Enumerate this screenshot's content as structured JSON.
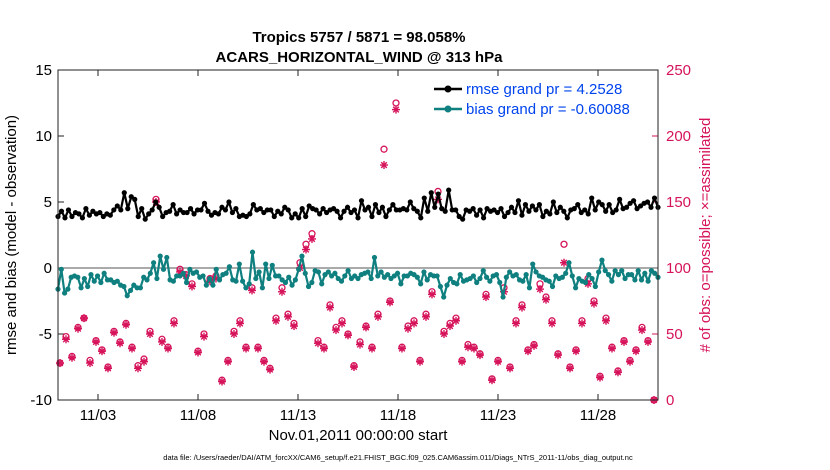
{
  "chart_data": {
    "type": "line",
    "title": "Tropics 5757 / 5871 = 98.058%",
    "subtitle": "ACARS_HORIZONTAL_WIND @ 313 hPa",
    "xlabel": "Nov.01,2011 00:00:00 start",
    "ylabel": "rmse and bias (model - observation)",
    "y2label": "# of obs: o=possible; ×=assimilated",
    "footnote": "data file: /Users/raeder/DAI/ATM_forcXX/CAM6_setup/f.e21.FHIST_BGC.f09_025.CAM6assim.011/Diags_NTrS_2011-11/obs_diag_output.nc",
    "xlim": [
      1,
      31
    ],
    "ylim": [
      -10,
      15
    ],
    "y2lim": [
      0,
      250
    ],
    "xticks": [
      3,
      8,
      13,
      18,
      23,
      28
    ],
    "xtick_labels": [
      "11/03",
      "11/08",
      "11/13",
      "11/18",
      "11/23",
      "11/28"
    ],
    "yticks": [
      -10,
      -5,
      0,
      5,
      10,
      15
    ],
    "y2ticks": [
      0,
      50,
      100,
      150,
      200,
      250
    ],
    "colors": {
      "rmse": "#000000",
      "bias": "#0f807f",
      "obs": "#d6135a",
      "zero": "#aaaaaa",
      "legend_text": "#0044ee"
    },
    "series": [
      {
        "name": "rmse grand pr = 4.2528",
        "color": "#000000",
        "marker": "dot",
        "axis": "left",
        "values": [
          3.9,
          4.3,
          3.8,
          4.4,
          3.9,
          4.2,
          4.1,
          3.8,
          4.5,
          4.0,
          4.3,
          4.1,
          4.2,
          3.9,
          4.1,
          4.0,
          4.4,
          4.7,
          4.4,
          5.7,
          4.5,
          5.4,
          5.2,
          3.9,
          4.5,
          3.7,
          4.1,
          4.4,
          5.0,
          4.6,
          3.9,
          4.2,
          4.3,
          4.8,
          4.1,
          4.4,
          4.2,
          4.2,
          4.5,
          4.1,
          4.4,
          4.4,
          4.9,
          4.3,
          4.0,
          4.2,
          4.1,
          4.6,
          4.4,
          5.0,
          4.2,
          4.5,
          3.9,
          4.0,
          3.9,
          4.1,
          4.8,
          4.4,
          4.5,
          4.2,
          4.4,
          4.4,
          3.9,
          4.3,
          4.1,
          4.6,
          4.4,
          3.8,
          4.1,
          3.8,
          4.5,
          3.9,
          4.7,
          4.5,
          4.4,
          4.1,
          4.5,
          4.2,
          4.4,
          4.5,
          4.3,
          3.8,
          4.3,
          4.6,
          4.2,
          4.4,
          3.8,
          5.1,
          4.4,
          4.6,
          3.9,
          4.8,
          4.2,
          4.6,
          3.9,
          4.4,
          4.8,
          4.4,
          4.4,
          4.5,
          4.4,
          5.0,
          4.5,
          4.3,
          3.8,
          5.3,
          4.3,
          5.7,
          4.6,
          5.6,
          4.5,
          4.3,
          5.9,
          4.4,
          4.4,
          3.9,
          3.7,
          4.4,
          4.3,
          4.5,
          4.0,
          4.4,
          3.8,
          4.5,
          4.3,
          4.4,
          4.2,
          4.5,
          3.9,
          4.2,
          4.6,
          4.2,
          5.1,
          4.0,
          4.8,
          4.3,
          4.7,
          4.4,
          4.8,
          3.9,
          4.3,
          4.1,
          5.0,
          4.2,
          4.6,
          4.3,
          3.8,
          4.4,
          4.5,
          4.8,
          4.2,
          4.4,
          4.1,
          5.3,
          4.4,
          5.0,
          4.8,
          4.3,
          4.8,
          4.2,
          4.4,
          5.2,
          4.5,
          4.6,
          4.9,
          5.1,
          4.5,
          4.7,
          4.9,
          5.0,
          4.6,
          5.3,
          4.6
        ]
      },
      {
        "name": "bias grand pr = -0.60088",
        "color": "#0f807f",
        "marker": "dot",
        "axis": "left",
        "values": [
          -1.6,
          -0.1,
          -1.9,
          -1.6,
          -0.7,
          -0.6,
          -0.7,
          -1.5,
          -0.8,
          -1.4,
          -0.5,
          -1.0,
          -0.6,
          -1.1,
          -0.4,
          -0.9,
          -0.9,
          -1.1,
          -1.0,
          -1.3,
          -1.4,
          -2.1,
          -1.7,
          -1.3,
          -1.5,
          -1.5,
          -0.7,
          -0.9,
          -0.4,
          0.4,
          -0.8,
          0.9,
          -0.1,
          0.8,
          -0.9,
          -1.0,
          -0.6,
          -0.6,
          -0.4,
          -1.1,
          -0.1,
          -0.4,
          -0.3,
          -0.7,
          -0.6,
          -1.3,
          -0.8,
          -1.3,
          -0.1,
          -0.9,
          -0.5,
          -0.4,
          0.1,
          -0.9,
          -1.0,
          0.3,
          -1.0,
          -1.5,
          -1.2,
          1.2,
          -0.8,
          -0.3,
          -1.5,
          0.3,
          -0.8,
          0.2,
          -0.6,
          -0.6,
          -0.9,
          -1.1,
          -0.7,
          -1.3,
          -0.9,
          -0.1,
          0.9,
          -0.4,
          -1.4,
          -1.1,
          -0.2,
          -0.3,
          -1.2,
          -0.5,
          -0.3,
          -0.6,
          -0.4,
          -0.8,
          -1.0,
          -0.6,
          -0.2,
          -0.8,
          -0.6,
          -0.8,
          -0.5,
          -0.4,
          -0.3,
          -0.8,
          0.8,
          -0.6,
          -0.3,
          -0.7,
          -0.5,
          -0.8,
          -0.6,
          -0.4,
          -1.2,
          -0.6,
          -0.6,
          -0.4,
          -0.5,
          -0.7,
          -1.2,
          -0.3,
          -0.9,
          -0.5,
          -0.6,
          -0.6,
          -1.4,
          -2.2,
          -1.3,
          -0.8,
          -1.1,
          -1.2,
          -0.5,
          -1.0,
          -0.9,
          -0.8,
          -0.6,
          -1.1,
          -0.8,
          -0.2,
          -0.7,
          -1.0,
          -0.6,
          -0.5,
          -1.1,
          -2.2,
          -0.7,
          -0.3,
          -0.6,
          -0.5,
          -0.9,
          -1.0,
          -0.5,
          -1.5,
          0.3,
          -0.3,
          -0.6,
          -0.7,
          -0.9,
          -1.0,
          -1.4,
          -0.6,
          -0.8,
          -0.7,
          -0.4,
          0.4,
          -0.6,
          -1.5,
          -0.8,
          -1.0,
          -1.1,
          -0.5,
          -0.8,
          -1.4,
          -0.3,
          0.6,
          -0.2,
          -0.5,
          -1.0,
          -0.2,
          -0.5,
          -0.2,
          -0.8,
          -0.5,
          -0.5,
          -0.9,
          -0.2,
          -0.9,
          -0.4,
          -1.0,
          -0.2,
          -0.4,
          -0.7
        ]
      },
      {
        "name": "obs possible",
        "color": "#d6135a",
        "marker": "circle",
        "axis": "right",
        "times": [
          1.1,
          1.4,
          1.7,
          2.0,
          2.3,
          2.6,
          2.9,
          3.2,
          3.5,
          3.8,
          4.1,
          4.4,
          4.7,
          5.0,
          5.3,
          5.6,
          5.9,
          6.2,
          6.5,
          6.8,
          7.1,
          7.4,
          7.7,
          8.0,
          8.3,
          8.6,
          8.9,
          9.2,
          9.5,
          9.8,
          10.1,
          10.4,
          10.7,
          11.0,
          11.3,
          11.6,
          11.9,
          12.2,
          12.5,
          12.8,
          13.1,
          13.4,
          13.7,
          14.0,
          14.3,
          14.6,
          14.9,
          15.2,
          15.5,
          15.8,
          16.1,
          16.4,
          16.7,
          17.0,
          17.3,
          17.6,
          17.9,
          18.2,
          18.5,
          18.8,
          19.1,
          19.4,
          19.7,
          20.0,
          20.3,
          20.6,
          20.9,
          21.2,
          21.5,
          21.8,
          22.1,
          22.4,
          22.7,
          23.0,
          23.3,
          23.6,
          23.9,
          24.2,
          24.5,
          24.8,
          25.1,
          25.4,
          25.7,
          26.0,
          26.3,
          26.6,
          26.9,
          27.2,
          27.5,
          27.8,
          28.1,
          28.4,
          28.7,
          29.0,
          29.3,
          29.6,
          29.9,
          30.2,
          30.5,
          30.8
        ],
        "values": [
          28,
          48,
          33,
          55,
          62,
          30,
          45,
          38,
          25,
          52,
          44,
          58,
          40,
          26,
          31,
          52,
          152,
          46,
          40,
          60,
          99,
          95,
          88,
          37,
          50,
          92,
          94,
          15,
          30,
          52,
          60,
          40,
          85,
          40,
          30,
          24,
          62,
          85,
          65,
          58,
          104,
          118,
          126,
          45,
          40,
          72,
          55,
          60,
          50,
          26,
          44,
          56,
          40,
          65,
          190,
          75,
          225,
          40,
          56,
          60,
          30,
          65,
          82,
          158,
          52,
          58,
          62,
          30,
          42,
          40,
          35,
          80,
          16,
          30,
          85,
          25,
          60,
          72,
          38,
          42,
          88,
          78,
          60,
          35,
          118,
          25,
          38,
          60,
          92,
          75,
          18,
          62,
          40,
          22,
          45,
          30,
          38,
          55,
          45,
          0
        ]
      },
      {
        "name": "obs assimilated",
        "color": "#d6135a",
        "marker": "star",
        "axis": "right",
        "times": [
          1.1,
          1.4,
          1.7,
          2.0,
          2.3,
          2.6,
          2.9,
          3.2,
          3.5,
          3.8,
          4.1,
          4.4,
          4.7,
          5.0,
          5.3,
          5.6,
          5.9,
          6.2,
          6.5,
          6.8,
          7.1,
          7.4,
          7.7,
          8.0,
          8.3,
          8.6,
          8.9,
          9.2,
          9.5,
          9.8,
          10.1,
          10.4,
          10.7,
          11.0,
          11.3,
          11.6,
          11.9,
          12.2,
          12.5,
          12.8,
          13.1,
          13.4,
          13.7,
          14.0,
          14.3,
          14.6,
          14.9,
          15.2,
          15.5,
          15.8,
          16.1,
          16.4,
          16.7,
          17.0,
          17.3,
          17.6,
          17.9,
          18.2,
          18.5,
          18.8,
          19.1,
          19.4,
          19.7,
          20.0,
          20.3,
          20.6,
          20.9,
          21.2,
          21.5,
          21.8,
          22.1,
          22.4,
          22.7,
          23.0,
          23.3,
          23.6,
          23.9,
          24.2,
          24.5,
          24.8,
          25.1,
          25.4,
          25.7,
          26.0,
          26.3,
          26.6,
          26.9,
          27.2,
          27.5,
          27.8,
          28.1,
          28.4,
          28.7,
          29.0,
          29.3,
          29.6,
          29.9,
          30.2,
          30.5,
          30.8
        ],
        "values": [
          28,
          46,
          32,
          54,
          62,
          28,
          44,
          37,
          24,
          51,
          43,
          57,
          39,
          24,
          29,
          50,
          150,
          44,
          39,
          58,
          97,
          94,
          86,
          36,
          48,
          90,
          92,
          14,
          29,
          50,
          58,
          39,
          83,
          39,
          29,
          23,
          60,
          82,
          63,
          56,
          100,
          114,
          122,
          43,
          39,
          70,
          53,
          58,
          49,
          25,
          42,
          55,
          39,
          63,
          178,
          74,
          220,
          39,
          54,
          58,
          29,
          63,
          80,
          152,
          50,
          56,
          60,
          29,
          40,
          39,
          34,
          78,
          15,
          29,
          82,
          24,
          58,
          70,
          37,
          41,
          84,
          76,
          58,
          34,
          104,
          24,
          37,
          58,
          88,
          73,
          17,
          60,
          39,
          21,
          44,
          29,
          37,
          53,
          44,
          0
        ]
      }
    ]
  },
  "legend": {
    "rmse_label": "rmse grand pr = 4.2528",
    "bias_label": "bias grand pr = -0.60088"
  }
}
